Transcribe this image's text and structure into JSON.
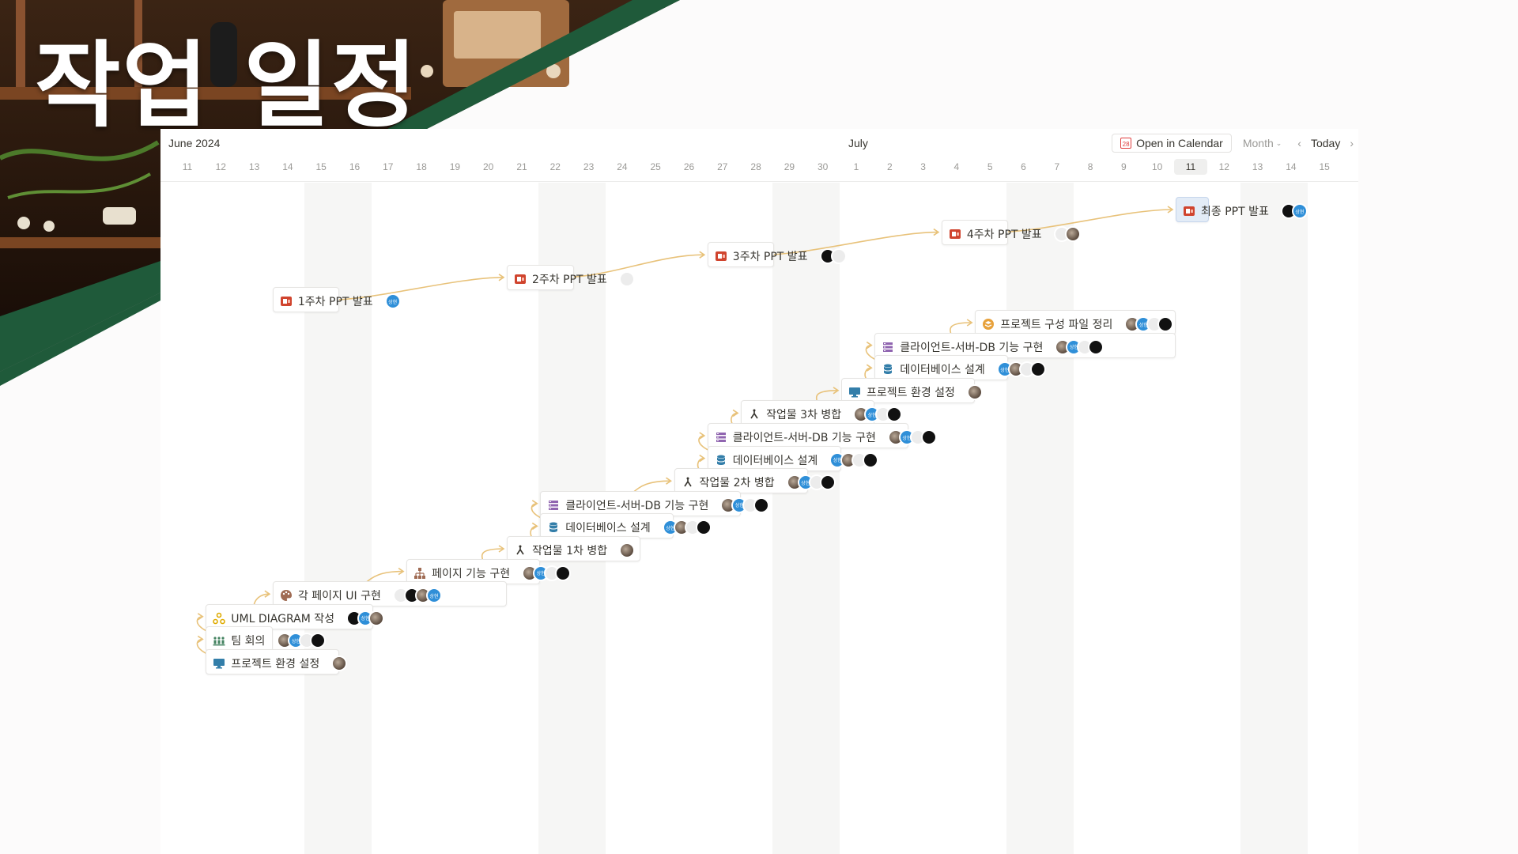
{
  "slide": {
    "title": "작업 일정"
  },
  "calendar": {
    "months": [
      {
        "label": "June 2024",
        "day_index": 0
      },
      {
        "label": "July",
        "day_index": 20
      }
    ],
    "days": [
      "11",
      "12",
      "13",
      "14",
      "15",
      "16",
      "17",
      "18",
      "19",
      "20",
      "21",
      "22",
      "23",
      "24",
      "25",
      "26",
      "27",
      "28",
      "29",
      "30",
      "1",
      "2",
      "3",
      "4",
      "5",
      "6",
      "7",
      "8",
      "9",
      "10",
      "11",
      "12",
      "13",
      "14",
      "15"
    ],
    "today_index": 30,
    "weekend_indices": [
      4,
      5,
      11,
      12,
      18,
      19,
      25,
      26,
      32,
      33
    ],
    "controls": {
      "open_in_calendar": "Open in Calendar",
      "calendar_icon_text": "28",
      "view": "Month",
      "prev": "‹",
      "next": "›",
      "today": "Today"
    }
  },
  "tasks": [
    {
      "id": "t1",
      "name": "최종 PPT 발표",
      "icon": "ppt",
      "start": 30,
      "end": 31,
      "assignees": [
        "black",
        "blue"
      ],
      "highlight": true
    },
    {
      "id": "t2",
      "name": "4주차 PPT 발표",
      "icon": "ppt",
      "start": 23,
      "end": 25,
      "assignees": [
        "white",
        "photo"
      ]
    },
    {
      "id": "t3",
      "name": "3주차 PPT 발표",
      "icon": "ppt",
      "start": 16,
      "end": 18,
      "assignees": [
        "black",
        "white"
      ]
    },
    {
      "id": "t4",
      "name": "2주차 PPT 발표",
      "icon": "ppt",
      "start": 10,
      "end": 12,
      "assignees": [
        "white"
      ]
    },
    {
      "id": "t5",
      "name": "1주차 PPT 발표",
      "icon": "ppt",
      "start": 3,
      "end": 5,
      "assignees": [
        "blue"
      ]
    },
    {
      "id": "t6",
      "name": "프로젝트 구성 파일 정리",
      "icon": "layers",
      "start": 24,
      "end": 30,
      "assignees": [
        "photo",
        "blue",
        "white",
        "black"
      ]
    },
    {
      "id": "t7",
      "name": "클라이언트-서버-DB 기능 구현",
      "icon": "list",
      "start": 21,
      "end": 30,
      "assignees": [
        "photo",
        "blue",
        "white",
        "black"
      ]
    },
    {
      "id": "t8",
      "name": "데이터베이스 설계",
      "icon": "db",
      "start": 21,
      "end": 25,
      "assignees": [
        "blue",
        "photo",
        "white",
        "black"
      ]
    },
    {
      "id": "t9",
      "name": "프로젝트 환경 설정",
      "icon": "monitor",
      "start": 20,
      "end": 24,
      "assignees": [
        "photo"
      ]
    },
    {
      "id": "t10",
      "name": "작업물 3차 병합",
      "icon": "merge",
      "start": 17,
      "end": 21,
      "assignees": [
        "photo",
        "blue",
        "white",
        "black"
      ]
    },
    {
      "id": "t11",
      "name": "클라이언트-서버-DB 기능 구현",
      "icon": "list",
      "start": 16,
      "end": 22,
      "assignees": [
        "photo",
        "blue",
        "white",
        "black"
      ]
    },
    {
      "id": "t12",
      "name": "데이터베이스 설계",
      "icon": "db",
      "start": 16,
      "end": 20,
      "assignees": [
        "blue",
        "photo",
        "white",
        "black"
      ]
    },
    {
      "id": "t13",
      "name": "작업물 2차 병합",
      "icon": "merge",
      "start": 15,
      "end": 19,
      "assignees": [
        "photo",
        "blue",
        "white",
        "black"
      ]
    },
    {
      "id": "t14",
      "name": "클라이언트-서버-DB 기능 구현",
      "icon": "list",
      "start": 11,
      "end": 17,
      "assignees": [
        "photo",
        "blue",
        "white",
        "black"
      ]
    },
    {
      "id": "t15",
      "name": "데이터베이스 설계",
      "icon": "db",
      "start": 11,
      "end": 15,
      "assignees": [
        "blue",
        "photo",
        "white",
        "black"
      ]
    },
    {
      "id": "t16",
      "name": "작업물 1차 병합",
      "icon": "merge",
      "start": 10,
      "end": 14,
      "assignees": [
        "photo"
      ]
    },
    {
      "id": "t17",
      "name": "페이지 기능 구현",
      "icon": "sitemap",
      "start": 7,
      "end": 11,
      "assignees": [
        "photo",
        "blue",
        "white",
        "black"
      ]
    },
    {
      "id": "t18",
      "name": "각 페이지 UI 구현",
      "icon": "palette",
      "start": 3,
      "end": 10,
      "assignees": [
        "white",
        "black",
        "photo",
        "blue"
      ]
    },
    {
      "id": "t19",
      "name": "UML DIAGRAM 작성",
      "icon": "diagram",
      "start": 1,
      "end": 6,
      "assignees": [
        "black",
        "blue",
        "photo"
      ]
    },
    {
      "id": "t20",
      "name": "팀 회의",
      "icon": "team",
      "start": 1,
      "end": 3,
      "assignees": [
        "photo",
        "blue",
        "white",
        "black"
      ]
    },
    {
      "id": "t21",
      "name": "프로젝트 환경 설정",
      "icon": "monitor",
      "start": 1,
      "end": 5,
      "assignees": [
        "photo"
      ]
    }
  ],
  "dependencies": [
    [
      "t5",
      "t4"
    ],
    [
      "t4",
      "t3"
    ],
    [
      "t3",
      "t2"
    ],
    [
      "t2",
      "t1"
    ],
    [
      "t21",
      "t20"
    ],
    [
      "t20",
      "t19"
    ],
    [
      "t19",
      "t18"
    ],
    [
      "t18",
      "t17"
    ],
    [
      "t17",
      "t16"
    ],
    [
      "t16",
      "t15"
    ],
    [
      "t15",
      "t14"
    ],
    [
      "t14",
      "t13"
    ],
    [
      "t13",
      "t12"
    ],
    [
      "t12",
      "t11"
    ],
    [
      "t11",
      "t10"
    ],
    [
      "t10",
      "t9"
    ],
    [
      "t9",
      "t8"
    ],
    [
      "t8",
      "t7"
    ],
    [
      "t7",
      "t6"
    ]
  ],
  "colors": {
    "accent_green": "#1f5a3a",
    "link_line": "#e8c27a",
    "ppt_red": "#d0442e",
    "weekend_shade": "#f6f6f5",
    "highlight": "#e3ecf7"
  }
}
